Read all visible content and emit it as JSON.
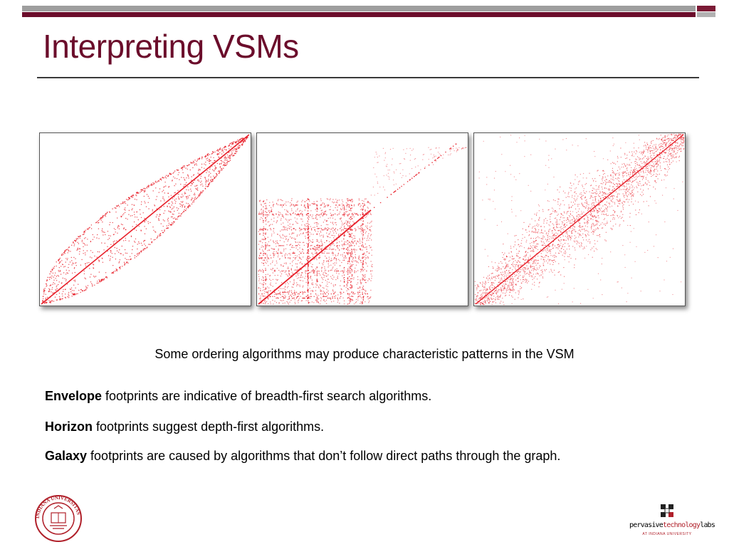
{
  "slide": {
    "title": "Interpreting VSMs",
    "caption": "Some ordering algorithms may produce characteristic patterns in the VSM",
    "lines": [
      {
        "term": "Envelope",
        "text": " footprints are indicative of breadth-first search algorithms."
      },
      {
        "term": "Horizon",
        "text": " footprints suggest depth-first algorithms."
      },
      {
        "term": "Galaxy",
        "text": " footprints are caused by algorithms that don’t follow direct paths through the graph."
      }
    ]
  },
  "images": [
    {
      "name": "envelope-footprint",
      "icon": "envelope-vsm-plot"
    },
    {
      "name": "horizon-footprint",
      "icon": "horizon-vsm-plot"
    },
    {
      "name": "galaxy-footprint",
      "icon": "galaxy-vsm-plot"
    }
  ],
  "logos": {
    "left": {
      "icon": "indiana-university-seal",
      "ring_text": "INDIANA UNIVERSITAS"
    },
    "right": {
      "icon": "pervasive-technology-labs-logo",
      "word1": "pervasive",
      "word2": "technology",
      "word3": "labs",
      "sub": "AT INDIANA UNIVERSITY"
    }
  },
  "colors": {
    "accent": "#6b0d2b",
    "dots": "#e8202a",
    "bar_gray": "#9e9e9e"
  }
}
